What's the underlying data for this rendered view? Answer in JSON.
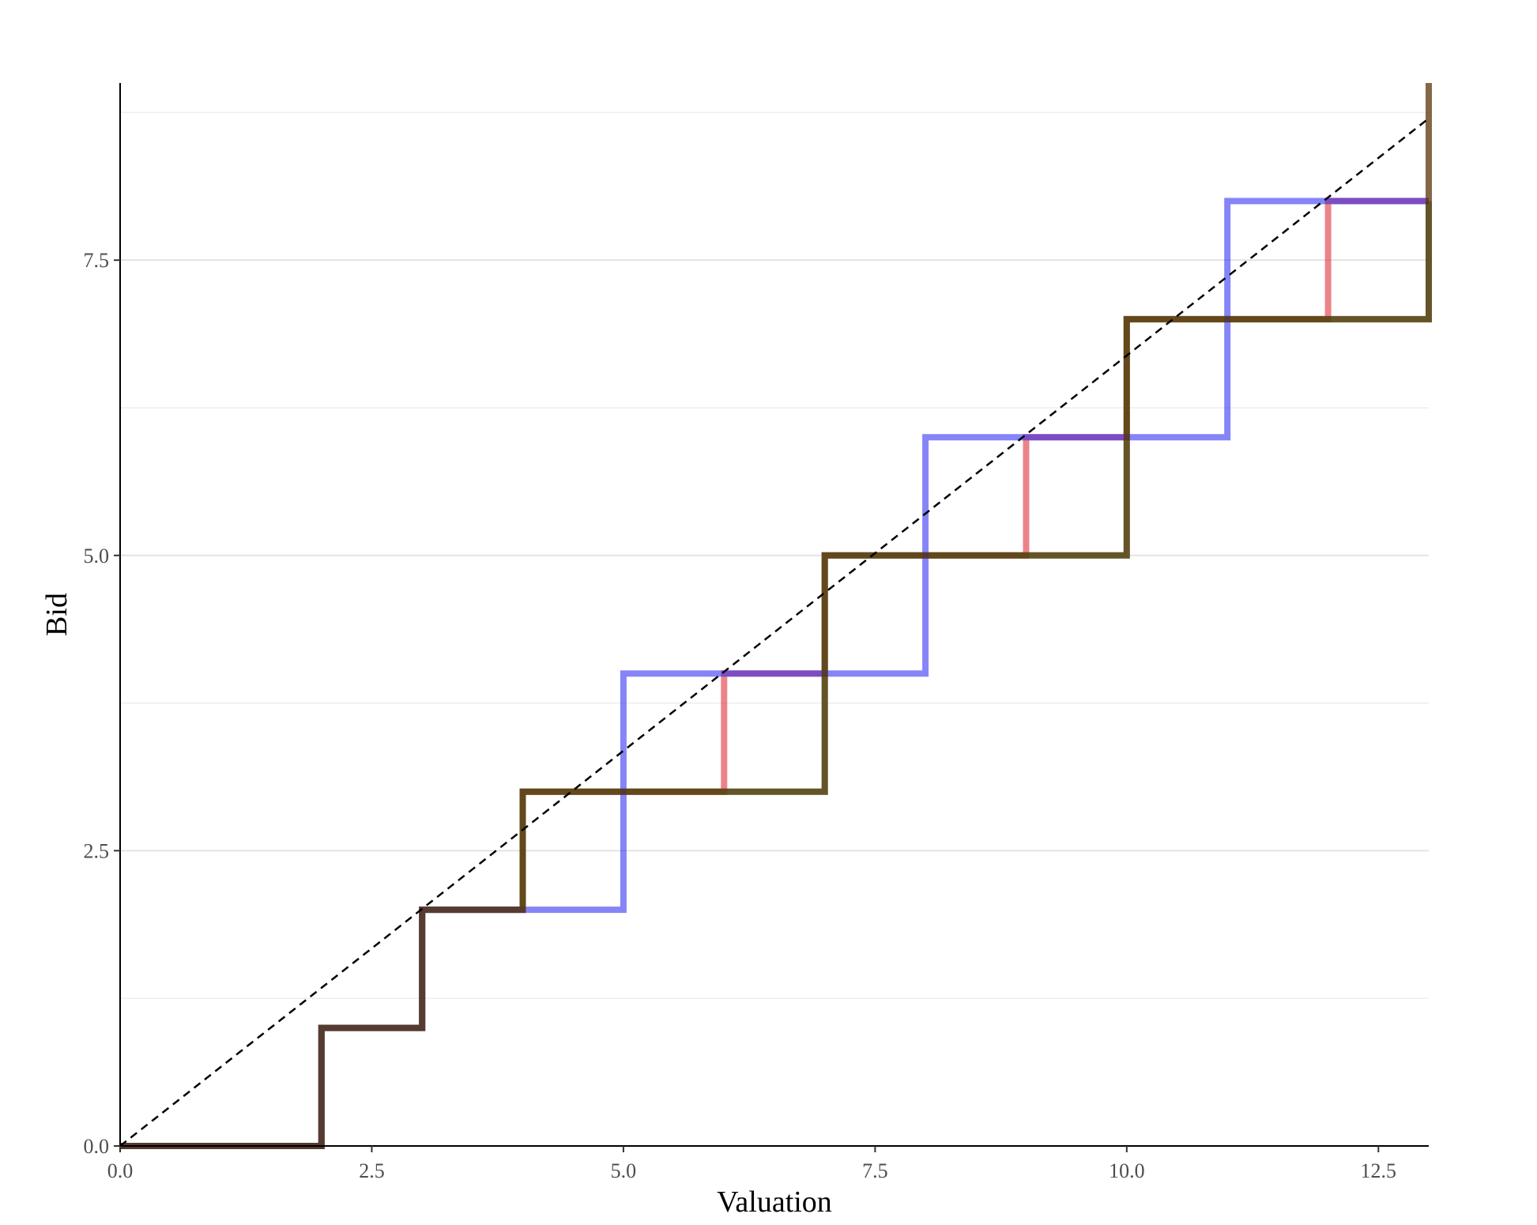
{
  "chart_data": {
    "type": "line",
    "subtype": "step",
    "title": "",
    "xlabel": "Valuation",
    "ylabel": "Bid",
    "xlim": [
      0,
      13
    ],
    "ylim": [
      0,
      9
    ],
    "x_ticks": [
      0,
      2.5,
      5,
      7.5,
      10,
      12.5
    ],
    "x_tick_labels": [
      "0.0",
      "2.5",
      "5.0",
      "7.5",
      "10.0",
      "12.5"
    ],
    "y_ticks": [
      0,
      2.5,
      5,
      7.5
    ],
    "y_tick_labels": [
      "0.0",
      "2.5",
      "5.0",
      "7.5"
    ],
    "y_minor_gridlines": [
      1.25,
      3.75,
      6.25,
      8.75
    ],
    "grid": "horizontal",
    "legend": "none",
    "series": [
      {
        "color": "#e0303c",
        "opacity": 0.6,
        "points": [
          [
            0,
            0
          ],
          [
            2,
            0
          ],
          [
            2,
            1
          ],
          [
            3,
            1
          ],
          [
            3,
            2
          ],
          [
            4,
            2
          ],
          [
            4,
            3
          ],
          [
            6,
            3
          ],
          [
            6,
            4
          ],
          [
            7,
            4
          ],
          [
            7,
            5
          ],
          [
            9,
            5
          ],
          [
            9,
            6
          ],
          [
            10,
            6
          ],
          [
            10,
            7
          ],
          [
            12,
            7
          ],
          [
            12,
            8
          ],
          [
            13,
            8
          ]
        ]
      },
      {
        "color": "#2e7d32",
        "opacity": 0.6,
        "points": [
          [
            0,
            0
          ],
          [
            2,
            0
          ],
          [
            2,
            1
          ],
          [
            3,
            1
          ],
          [
            3,
            2
          ],
          [
            4,
            2
          ],
          [
            4,
            3
          ],
          [
            7,
            3
          ],
          [
            7,
            5
          ],
          [
            10,
            5
          ],
          [
            10,
            7
          ],
          [
            13,
            7
          ],
          [
            13,
            8
          ]
        ]
      },
      {
        "color": "#2020f0",
        "opacity": 0.55,
        "points": [
          [
            0,
            0
          ],
          [
            2,
            0
          ],
          [
            2,
            1
          ],
          [
            3,
            1
          ],
          [
            3,
            2
          ],
          [
            5,
            2
          ],
          [
            5,
            4
          ],
          [
            8,
            4
          ],
          [
            8,
            6
          ],
          [
            11,
            6
          ],
          [
            11,
            8
          ],
          [
            13,
            8
          ]
        ]
      },
      {
        "color": "#5b3608",
        "opacity": 0.75,
        "points": [
          [
            0,
            0
          ],
          [
            2,
            0
          ],
          [
            2,
            1
          ],
          [
            3,
            1
          ],
          [
            3,
            2
          ],
          [
            4,
            2
          ],
          [
            4,
            3
          ],
          [
            7,
            3
          ],
          [
            7,
            5
          ],
          [
            10,
            5
          ],
          [
            10,
            7
          ],
          [
            13,
            7
          ],
          [
            13,
            9
          ]
        ]
      }
    ],
    "reference_line": {
      "style": "dashed",
      "color": "#000000",
      "points": [
        [
          0,
          0
        ],
        [
          13,
          8.7
        ]
      ]
    }
  }
}
